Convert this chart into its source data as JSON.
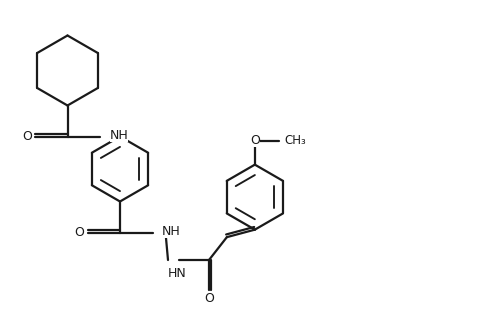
{
  "bg_color": "#ffffff",
  "line_color": "#1a1a1a",
  "text_color": "#1a1a1a",
  "bond_lw": 1.6,
  "figsize": [
    4.85,
    3.23
  ],
  "dpi": 100,
  "xlim": [
    0,
    9.7
  ],
  "ylim": [
    0,
    6.46
  ]
}
